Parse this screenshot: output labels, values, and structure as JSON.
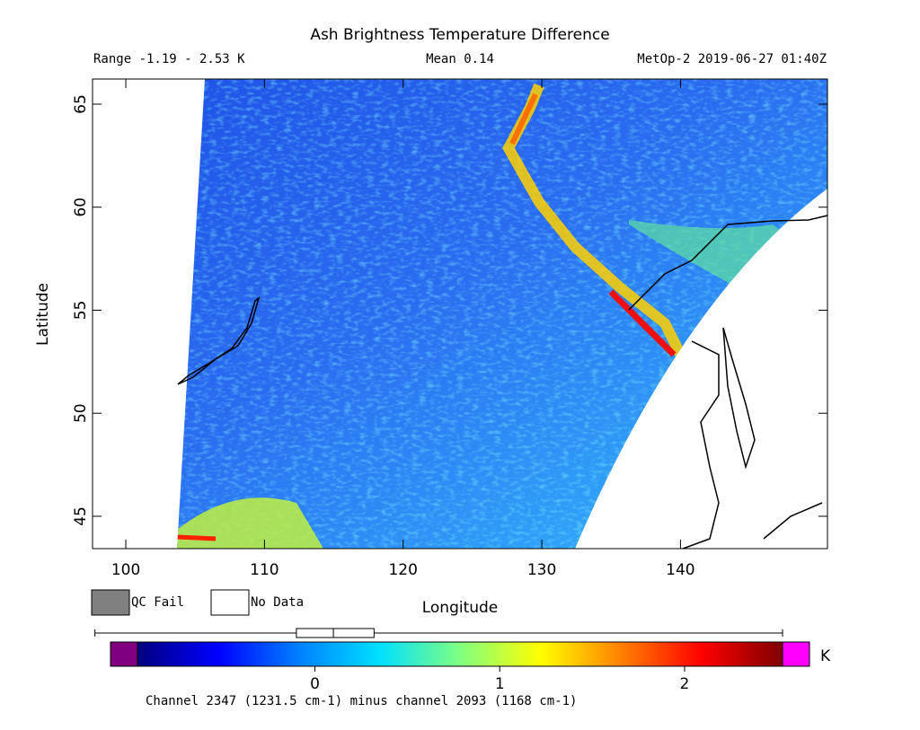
{
  "title": "Ash Brightness Temperature Difference",
  "subtitle": {
    "range": "Range -1.19 - 2.53 K",
    "mean": "Mean 0.14",
    "satellite": "MetOp-2 2019-06-27 01:40Z"
  },
  "x_axis": {
    "label": "Longitude",
    "lim": [
      97.6,
      150.6
    ],
    "ticks": [
      100,
      110,
      120,
      130,
      140
    ]
  },
  "y_axis": {
    "label": "Latitude",
    "lim": [
      43.43,
      66.22
    ],
    "ticks": [
      45,
      50,
      55,
      60,
      65
    ]
  },
  "legend": [
    {
      "label": "QC Fail",
      "color": "#808080"
    },
    {
      "label": "No Data",
      "color": "#ffffff"
    }
  ],
  "colorbar": {
    "lim": [
      -0.96,
      2.53
    ],
    "ticks": [
      0,
      1,
      2
    ],
    "unit": "K",
    "low_color": "#800080",
    "high_color": "#ff00ff",
    "colors": [
      "#00007f",
      "#0000ff",
      "#0080ff",
      "#00e0ff",
      "#80ff80",
      "#ffff00",
      "#ff8000",
      "#ff0000",
      "#7f0000"
    ],
    "box": [
      -1.19,
      -0.1,
      0.1,
      0.32,
      2.53
    ]
  },
  "footer": "Channel 2347 (1231.5 cm-1) minus channel 2093 (1168 cm-1)"
}
